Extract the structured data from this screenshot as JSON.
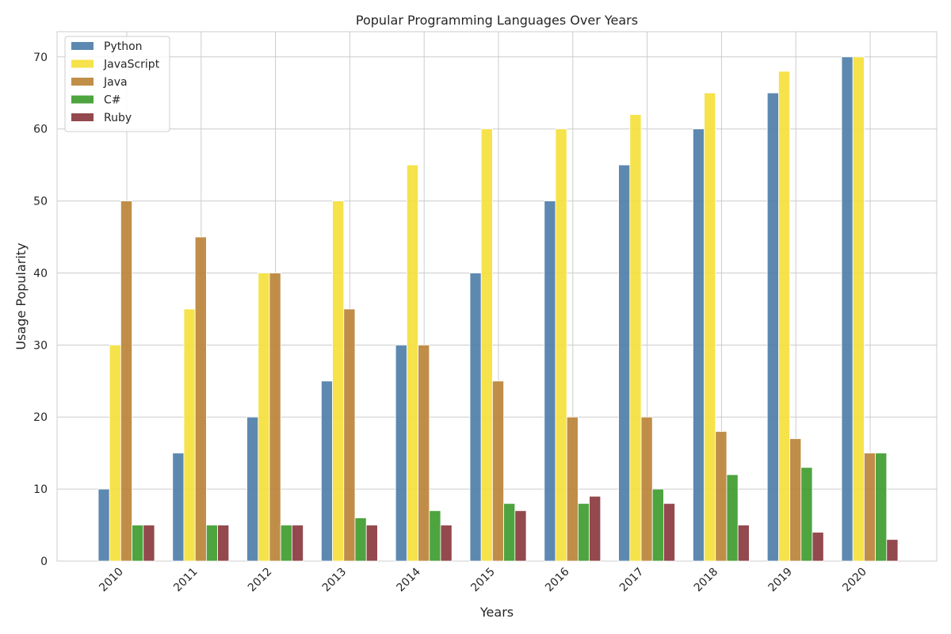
{
  "chart_data": {
    "type": "bar",
    "title": "Popular Programming Languages Over Years",
    "xlabel": "Years",
    "ylabel": "Usage Popularity",
    "categories": [
      "2010",
      "2011",
      "2012",
      "2013",
      "2014",
      "2015",
      "2016",
      "2017",
      "2018",
      "2019",
      "2020"
    ],
    "yticks": [
      0,
      10,
      20,
      30,
      40,
      50,
      60,
      70
    ],
    "ylim": [
      0,
      73.5
    ],
    "grid": true,
    "legend_position": "top-left",
    "series": [
      {
        "name": "Python",
        "color": "#4f7faa",
        "values": [
          10,
          15,
          20,
          25,
          30,
          40,
          50,
          55,
          60,
          65,
          70
        ]
      },
      {
        "name": "JavaScript",
        "color": "#f5e03c",
        "values": [
          30,
          35,
          40,
          50,
          55,
          60,
          60,
          62,
          65,
          68,
          70
        ]
      },
      {
        "name": "Java",
        "color": "#bb8439",
        "values": [
          50,
          45,
          40,
          35,
          30,
          25,
          20,
          20,
          18,
          17,
          15
        ]
      },
      {
        "name": "C#",
        "color": "#3f9c2e",
        "values": [
          5,
          5,
          5,
          6,
          7,
          8,
          8,
          10,
          12,
          13,
          15
        ]
      },
      {
        "name": "Ruby",
        "color": "#8a3a3e",
        "values": [
          5,
          5,
          5,
          5,
          5,
          7,
          9,
          8,
          5,
          4,
          3
        ]
      }
    ]
  }
}
